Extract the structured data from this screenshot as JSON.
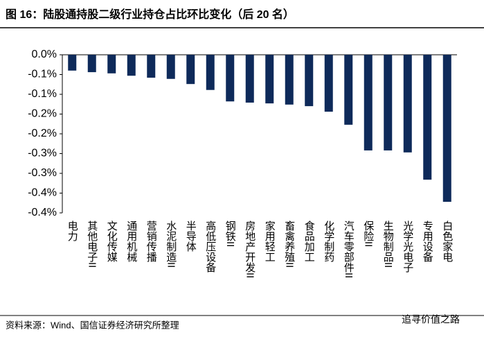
{
  "chart_data": {
    "type": "bar",
    "title": "图 16：陆股通持股二级行业持仓占比环比变化（后 20 名）",
    "source": "资料来源：Wind、国信证券经济研究所整理",
    "watermark": "追寻价值之路",
    "categories": [
      "电力",
      "其他电子II",
      "文化传媒",
      "通用机械",
      "营销传播",
      "水泥制造II",
      "半导体",
      "高低压设备",
      "钢铁II",
      "房地产开发II",
      "家用轻工",
      "畜禽养殖II",
      "食品加工",
      "化学制药",
      "汽车零部件II",
      "保险II",
      "生物制品II",
      "光学光电子",
      "专用设备",
      "白色家电"
    ],
    "values": [
      -0.04,
      -0.044,
      -0.047,
      -0.053,
      -0.058,
      -0.061,
      -0.074,
      -0.089,
      -0.118,
      -0.121,
      -0.123,
      -0.126,
      -0.13,
      -0.144,
      -0.177,
      -0.242,
      -0.242,
      -0.247,
      -0.316,
      -0.372
    ],
    "color": "#0e2a5a",
    "ylim": [
      -0.4,
      0
    ],
    "yticks": [
      {
        "value": 0,
        "label": "0.0%"
      },
      {
        "value": -0.05,
        "label": "-0.1%"
      },
      {
        "value": -0.1,
        "label": "-0.1%"
      },
      {
        "value": -0.15,
        "label": "-0.2%"
      },
      {
        "value": -0.2,
        "label": "-0.2%"
      },
      {
        "value": -0.25,
        "label": "-0.3%"
      },
      {
        "value": -0.3,
        "label": "-0.3%"
      },
      {
        "value": -0.35,
        "label": "-0.4%"
      },
      {
        "value": -0.4,
        "label": "-0.4%"
      }
    ],
    "grid": false
  }
}
